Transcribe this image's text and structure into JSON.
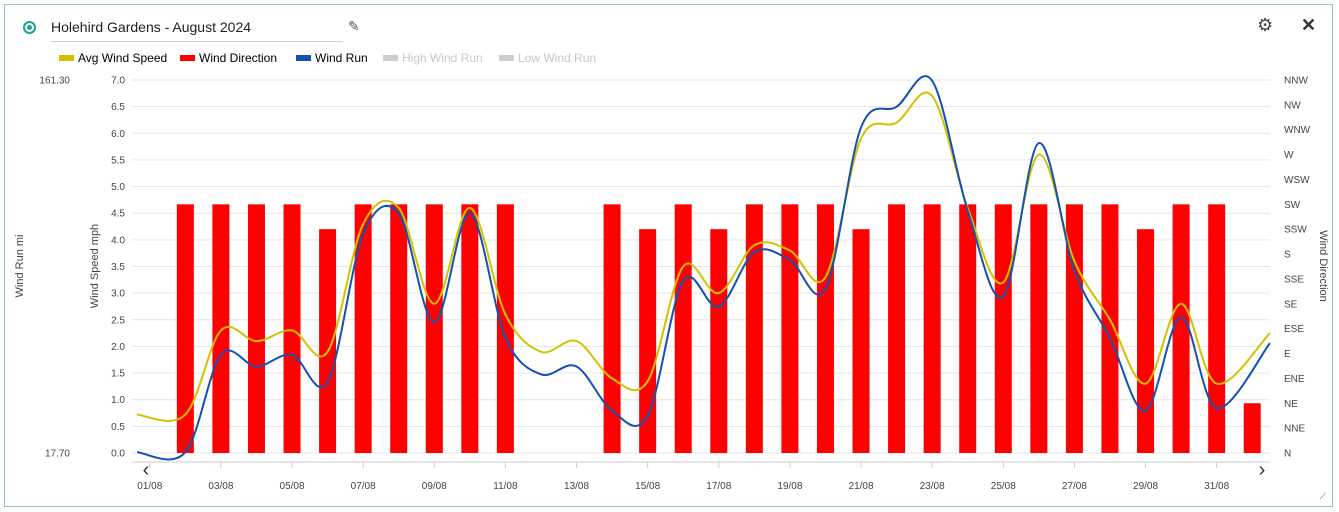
{
  "widget": {
    "title": "Holehird Gardens - August 2024",
    "icons": {
      "status": "status-dot-icon",
      "edit": "pencil-icon",
      "settings": "gear-icon",
      "close": "close-icon",
      "prev": "chevron-left-icon",
      "next": "chevron-right-icon",
      "resize": "resize-handle-icon"
    }
  },
  "legend": [
    {
      "label": "Avg Wind Speed",
      "color": "#d4c200",
      "active": true
    },
    {
      "label": "Wind Direction",
      "color": "#ff0000",
      "active": true
    },
    {
      "label": "Wind Run",
      "color": "#1352b0",
      "active": true
    },
    {
      "label": "High Wind Run",
      "color": "#cccccc",
      "active": false
    },
    {
      "label": "Low Wind Run",
      "color": "#cccccc",
      "active": false
    }
  ],
  "chart_data": {
    "type": "bar+line",
    "x_tick_labels": [
      "01/08",
      "03/08",
      "05/08",
      "07/08",
      "09/08",
      "11/08",
      "13/08",
      "15/08",
      "17/08",
      "19/08",
      "21/08",
      "23/08",
      "25/08",
      "27/08",
      "29/08",
      "31/08"
    ],
    "axes": {
      "wind_run": {
        "label": "Wind Run mi",
        "tick_labels": [
          "161.30",
          "17.70"
        ],
        "range": [
          17.7,
          161.3
        ]
      },
      "wind_speed": {
        "label": "Wind Speed mph",
        "range": [
          0,
          7.0
        ],
        "tick_labels": [
          "0.0",
          "0.5",
          "1.0",
          "1.5",
          "2.0",
          "2.5",
          "3.0",
          "3.5",
          "4.0",
          "4.5",
          "5.0",
          "5.5",
          "6.0",
          "6.5",
          "7.0"
        ]
      },
      "wind_direction": {
        "label": "Wind Direction",
        "tick_labels": [
          "N",
          "NNE",
          "NE",
          "ENE",
          "E",
          "ESE",
          "SE",
          "SSE",
          "S",
          "SSW",
          "SW",
          "WSW",
          "W",
          "WNW",
          "NW",
          "NNW"
        ]
      }
    },
    "grid": true,
    "legend_position": "top-left",
    "series": [
      {
        "name": "Avg Wind Speed",
        "axis": "wind_speed",
        "render": "line",
        "color": "#d4c200",
        "values": [
          0.72,
          0.72,
          2.3,
          2.1,
          2.3,
          1.9,
          4.3,
          4.6,
          2.8,
          4.6,
          2.6,
          1.9,
          2.1,
          1.4,
          1.35,
          3.5,
          3.0,
          3.9,
          3.8,
          3.3,
          5.9,
          6.2,
          6.7,
          4.6,
          3.2,
          5.6,
          3.6,
          2.5,
          1.3,
          2.8,
          1.3,
          2.25
        ]
      },
      {
        "name": "Wind Run",
        "axis": "wind_run",
        "render": "line",
        "color": "#1352b0",
        "values": [
          18,
          18,
          55.5,
          51,
          55.5,
          45,
          102,
          110,
          68,
          110,
          62,
          48,
          51,
          34,
          32,
          84,
          74,
          95,
          92,
          81,
          143,
          151,
          161,
          111,
          78,
          137,
          88,
          62,
          34,
          70,
          35,
          60
        ]
      },
      {
        "name": "Wind Direction",
        "axis": "wind_direction",
        "render": "bar",
        "color": "#ff0000",
        "values": [
          "",
          "SW",
          "SW",
          "SW",
          "SW",
          "SSW",
          "SW",
          "SW",
          "SW",
          "SW",
          "SW",
          "",
          "",
          "SW",
          "SSW",
          "SW",
          "SSW",
          "SW",
          "SW",
          "SW",
          "SSW",
          "SW",
          "SW",
          "SW",
          "SW",
          "SW",
          "SW",
          "SW",
          "SSW",
          "SW",
          "SW",
          "NE"
        ]
      }
    ]
  }
}
